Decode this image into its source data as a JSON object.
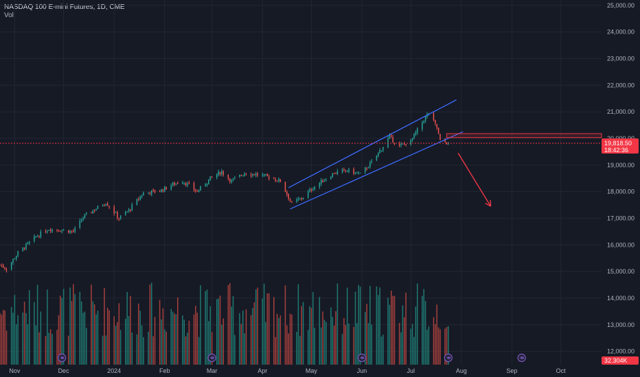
{
  "header": {
    "title": "NASDAQ 100 E-mini Futures, 1D, CME",
    "volume_label": "Vol"
  },
  "colors": {
    "background": "#161a25",
    "grid": "#232733",
    "up": "#26a69a",
    "down": "#ef5350",
    "vol_up": "#1f7a72",
    "vol_down": "#a8403d",
    "channel": "#3d6bff",
    "projection": "#f23645",
    "price_tag": "#f23645",
    "event_icon": "#7e57c2"
  },
  "price_tag": {
    "price": "19,818.50",
    "countdown": "18:42:36"
  },
  "volume_tag": {
    "value": "32.304K"
  },
  "event_icon_name": "event-marker-icon",
  "chart_data": {
    "type": "candlestick",
    "title": "NASDAQ 100 E-mini Futures, 1D, CME",
    "y_ticks": [
      {
        "label": "25,000.00",
        "value": 25000
      },
      {
        "label": "24,000.00",
        "value": 24000
      },
      {
        "label": "23,000.00",
        "value": 23000
      },
      {
        "label": "22,000.00",
        "value": 22000
      },
      {
        "label": "21,000.00",
        "value": 21000
      },
      {
        "label": "20,000.00",
        "value": 20000
      },
      {
        "label": "19,000.00",
        "value": 19000
      },
      {
        "label": "18,000.00",
        "value": 18000
      },
      {
        "label": "17,000.00",
        "value": 17000
      },
      {
        "label": "16,000.00",
        "value": 16000
      },
      {
        "label": "15,000.00",
        "value": 15000
      },
      {
        "label": "14,000.00",
        "value": 14000
      },
      {
        "label": "13,000.00",
        "value": 13000
      },
      {
        "label": "12,000.00",
        "value": 12000
      }
    ],
    "ylim": [
      11500,
      25200
    ],
    "x_ticks": [
      {
        "label": "Nov",
        "date": "2023-11-01"
      },
      {
        "label": "Dec",
        "date": "2023-12-01"
      },
      {
        "label": "2024",
        "date": "2024-01-01"
      },
      {
        "label": "Feb",
        "date": "2024-02-01"
      },
      {
        "label": "Mar",
        "date": "2024-03-01"
      },
      {
        "label": "Apr",
        "date": "2024-04-01"
      },
      {
        "label": "May",
        "date": "2024-05-01"
      },
      {
        "label": "Jun",
        "date": "2024-06-01"
      },
      {
        "label": "Jul",
        "date": "2024-07-01"
      },
      {
        "label": "Aug",
        "date": "2024-08-01"
      },
      {
        "label": "Sep",
        "date": "2024-09-01"
      },
      {
        "label": "Oct",
        "date": "2024-10-01"
      }
    ],
    "xlim": [
      "2023-10-23",
      "2024-10-26"
    ],
    "close_anchors": [
      {
        "date": "2023-10-23",
        "close": 15250
      },
      {
        "date": "2023-10-27",
        "close": 15100
      },
      {
        "date": "2023-11-03",
        "close": 15700
      },
      {
        "date": "2023-11-14",
        "close": 16300
      },
      {
        "date": "2023-11-22",
        "close": 16600
      },
      {
        "date": "2023-12-01",
        "close": 16550
      },
      {
        "date": "2023-12-07",
        "close": 16500
      },
      {
        "date": "2023-12-14",
        "close": 17100
      },
      {
        "date": "2023-12-27",
        "close": 17600
      },
      {
        "date": "2024-01-04",
        "close": 17000
      },
      {
        "date": "2024-01-10",
        "close": 17300
      },
      {
        "date": "2024-01-19",
        "close": 17950
      },
      {
        "date": "2024-01-30",
        "close": 18050
      },
      {
        "date": "2024-02-05",
        "close": 18250
      },
      {
        "date": "2024-02-12",
        "close": 18400
      },
      {
        "date": "2024-02-21",
        "close": 18000
      },
      {
        "date": "2024-02-29",
        "close": 18500
      },
      {
        "date": "2024-03-07",
        "close": 18750
      },
      {
        "date": "2024-03-13",
        "close": 18400
      },
      {
        "date": "2024-03-21",
        "close": 18700
      },
      {
        "date": "2024-03-28",
        "close": 18650
      },
      {
        "date": "2024-04-05",
        "close": 18550
      },
      {
        "date": "2024-04-12",
        "close": 18400
      },
      {
        "date": "2024-04-19",
        "close": 17550
      },
      {
        "date": "2024-04-26",
        "close": 17800
      },
      {
        "date": "2024-05-03",
        "close": 18200
      },
      {
        "date": "2024-05-15",
        "close": 18700
      },
      {
        "date": "2024-05-23",
        "close": 18800
      },
      {
        "date": "2024-05-31",
        "close": 18650
      },
      {
        "date": "2024-06-07",
        "close": 19100
      },
      {
        "date": "2024-06-18",
        "close": 20050
      },
      {
        "date": "2024-06-24",
        "close": 19700
      },
      {
        "date": "2024-07-01",
        "close": 19900
      },
      {
        "date": "2024-07-10",
        "close": 20800
      },
      {
        "date": "2024-07-12",
        "close": 20950
      },
      {
        "date": "2024-07-17",
        "close": 20400
      },
      {
        "date": "2024-07-19",
        "close": 19900
      },
      {
        "date": "2024-07-24",
        "close": 19818.5
      }
    ],
    "channel": {
      "upper": [
        {
          "date": "2024-04-17",
          "value": 18150
        },
        {
          "date": "2024-07-29",
          "value": 21450
        }
      ],
      "lower": [
        {
          "date": "2024-04-18",
          "value": 17350
        },
        {
          "date": "2024-08-02",
          "value": 20250
        }
      ]
    },
    "resistance_zone": [
      20030,
      20180
    ],
    "projection_arrow": {
      "from": {
        "date": "2024-07-30",
        "value": 19450
      },
      "to": {
        "date": "2024-08-19",
        "value": 17450
      }
    },
    "event_dates": [
      "2023-11-30",
      "2024-03-01",
      "2024-06-01",
      "2024-07-24",
      "2024-09-07"
    ]
  }
}
